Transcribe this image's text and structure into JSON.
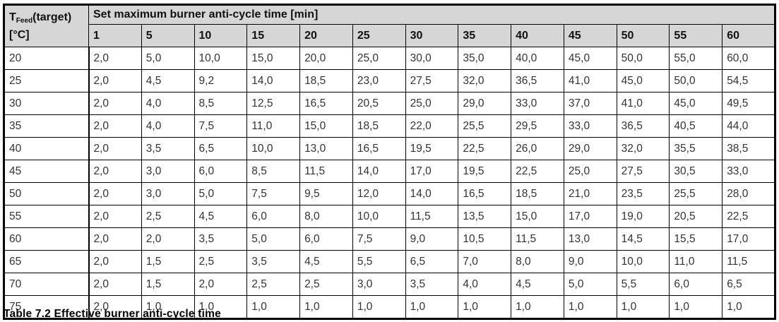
{
  "table": {
    "corner": {
      "symbol": "T",
      "subscript": "Feed",
      "suffix": "(target)",
      "unit": "[°C]"
    },
    "span_header": "Set maximum burner anti-cycle time [min]",
    "time_columns": [
      "1",
      "5",
      "10",
      "15",
      "20",
      "25",
      "30",
      "35",
      "40",
      "45",
      "50",
      "55",
      "60"
    ],
    "rows": [
      {
        "temp": "20",
        "values": [
          "2,0",
          "5,0",
          "10,0",
          "15,0",
          "20,0",
          "25,0",
          "30,0",
          "35,0",
          "40,0",
          "45,0",
          "50,0",
          "55,0",
          "60,0"
        ]
      },
      {
        "temp": "25",
        "values": [
          "2,0",
          "4,5",
          "9,2",
          "14,0",
          "18,5",
          "23,0",
          "27,5",
          "32,0",
          "36,5",
          "41,0",
          "45,0",
          "50,0",
          "54,5"
        ]
      },
      {
        "temp": "30",
        "values": [
          "2,0",
          "4,0",
          "8,5",
          "12,5",
          "16,5",
          "20,5",
          "25,0",
          "29,0",
          "33,0",
          "37,0",
          "41,0",
          "45,0",
          "49,5"
        ]
      },
      {
        "temp": "35",
        "values": [
          "2,0",
          "4,0",
          "7,5",
          "11,0",
          "15,0",
          "18,5",
          "22,0",
          "25,5",
          "29,5",
          "33,0",
          "36,5",
          "40,5",
          "44,0"
        ]
      },
      {
        "temp": "40",
        "values": [
          "2,0",
          "3,5",
          "6,5",
          "10,0",
          "13,0",
          "16,5",
          "19,5",
          "22,5",
          "26,0",
          "29,0",
          "32,0",
          "35,5",
          "38,5"
        ]
      },
      {
        "temp": "45",
        "values": [
          "2,0",
          "3,0",
          "6,0",
          "8,5",
          "11,5",
          "14,0",
          "17,0",
          "19,5",
          "22,5",
          "25,0",
          "27,5",
          "30,5",
          "33,0"
        ]
      },
      {
        "temp": "50",
        "values": [
          "2,0",
          "3,0",
          "5,0",
          "7,5",
          "9,5",
          "12,0",
          "14,0",
          "16,5",
          "18,5",
          "21,0",
          "23,5",
          "25,5",
          "28,0"
        ]
      },
      {
        "temp": "55",
        "values": [
          "2,0",
          "2,5",
          "4,5",
          "6,0",
          "8,0",
          "10,0",
          "11,5",
          "13,5",
          "15,0",
          "17,0",
          "19,0",
          "20,5",
          "22,5"
        ]
      },
      {
        "temp": "60",
        "values": [
          "2,0",
          "2,0",
          "3,5",
          "5,0",
          "6,0",
          "7,5",
          "9,0",
          "10,5",
          "11,5",
          "13,0",
          "14,5",
          "15,5",
          "17,0"
        ]
      },
      {
        "temp": "65",
        "values": [
          "2,0",
          "1,5",
          "2,5",
          "3,5",
          "4,5",
          "5,5",
          "6,5",
          "7,0",
          "8,0",
          "9,0",
          "10,0",
          "11,0",
          "11,5"
        ]
      },
      {
        "temp": "70",
        "values": [
          "2,0",
          "1,5",
          "2,0",
          "2,5",
          "2,5",
          "3,0",
          "3,5",
          "4,0",
          "4,5",
          "5,0",
          "5,5",
          "6,0",
          "6,5"
        ]
      },
      {
        "temp": "75",
        "values": [
          "2,0",
          "1,0",
          "1,0",
          "1,0",
          "1,0",
          "1,0",
          "1,0",
          "1,0",
          "1,0",
          "1,0",
          "1,0",
          "1,0",
          "1,0"
        ]
      }
    ],
    "caption": "Table 7.2 Effective burner anti-cycle time"
  },
  "colors": {
    "header_bg": "#d6d6d6",
    "border": "#000000",
    "cell_bg": "#ffffff",
    "data_text": "#333333",
    "header_text": "#111111"
  }
}
